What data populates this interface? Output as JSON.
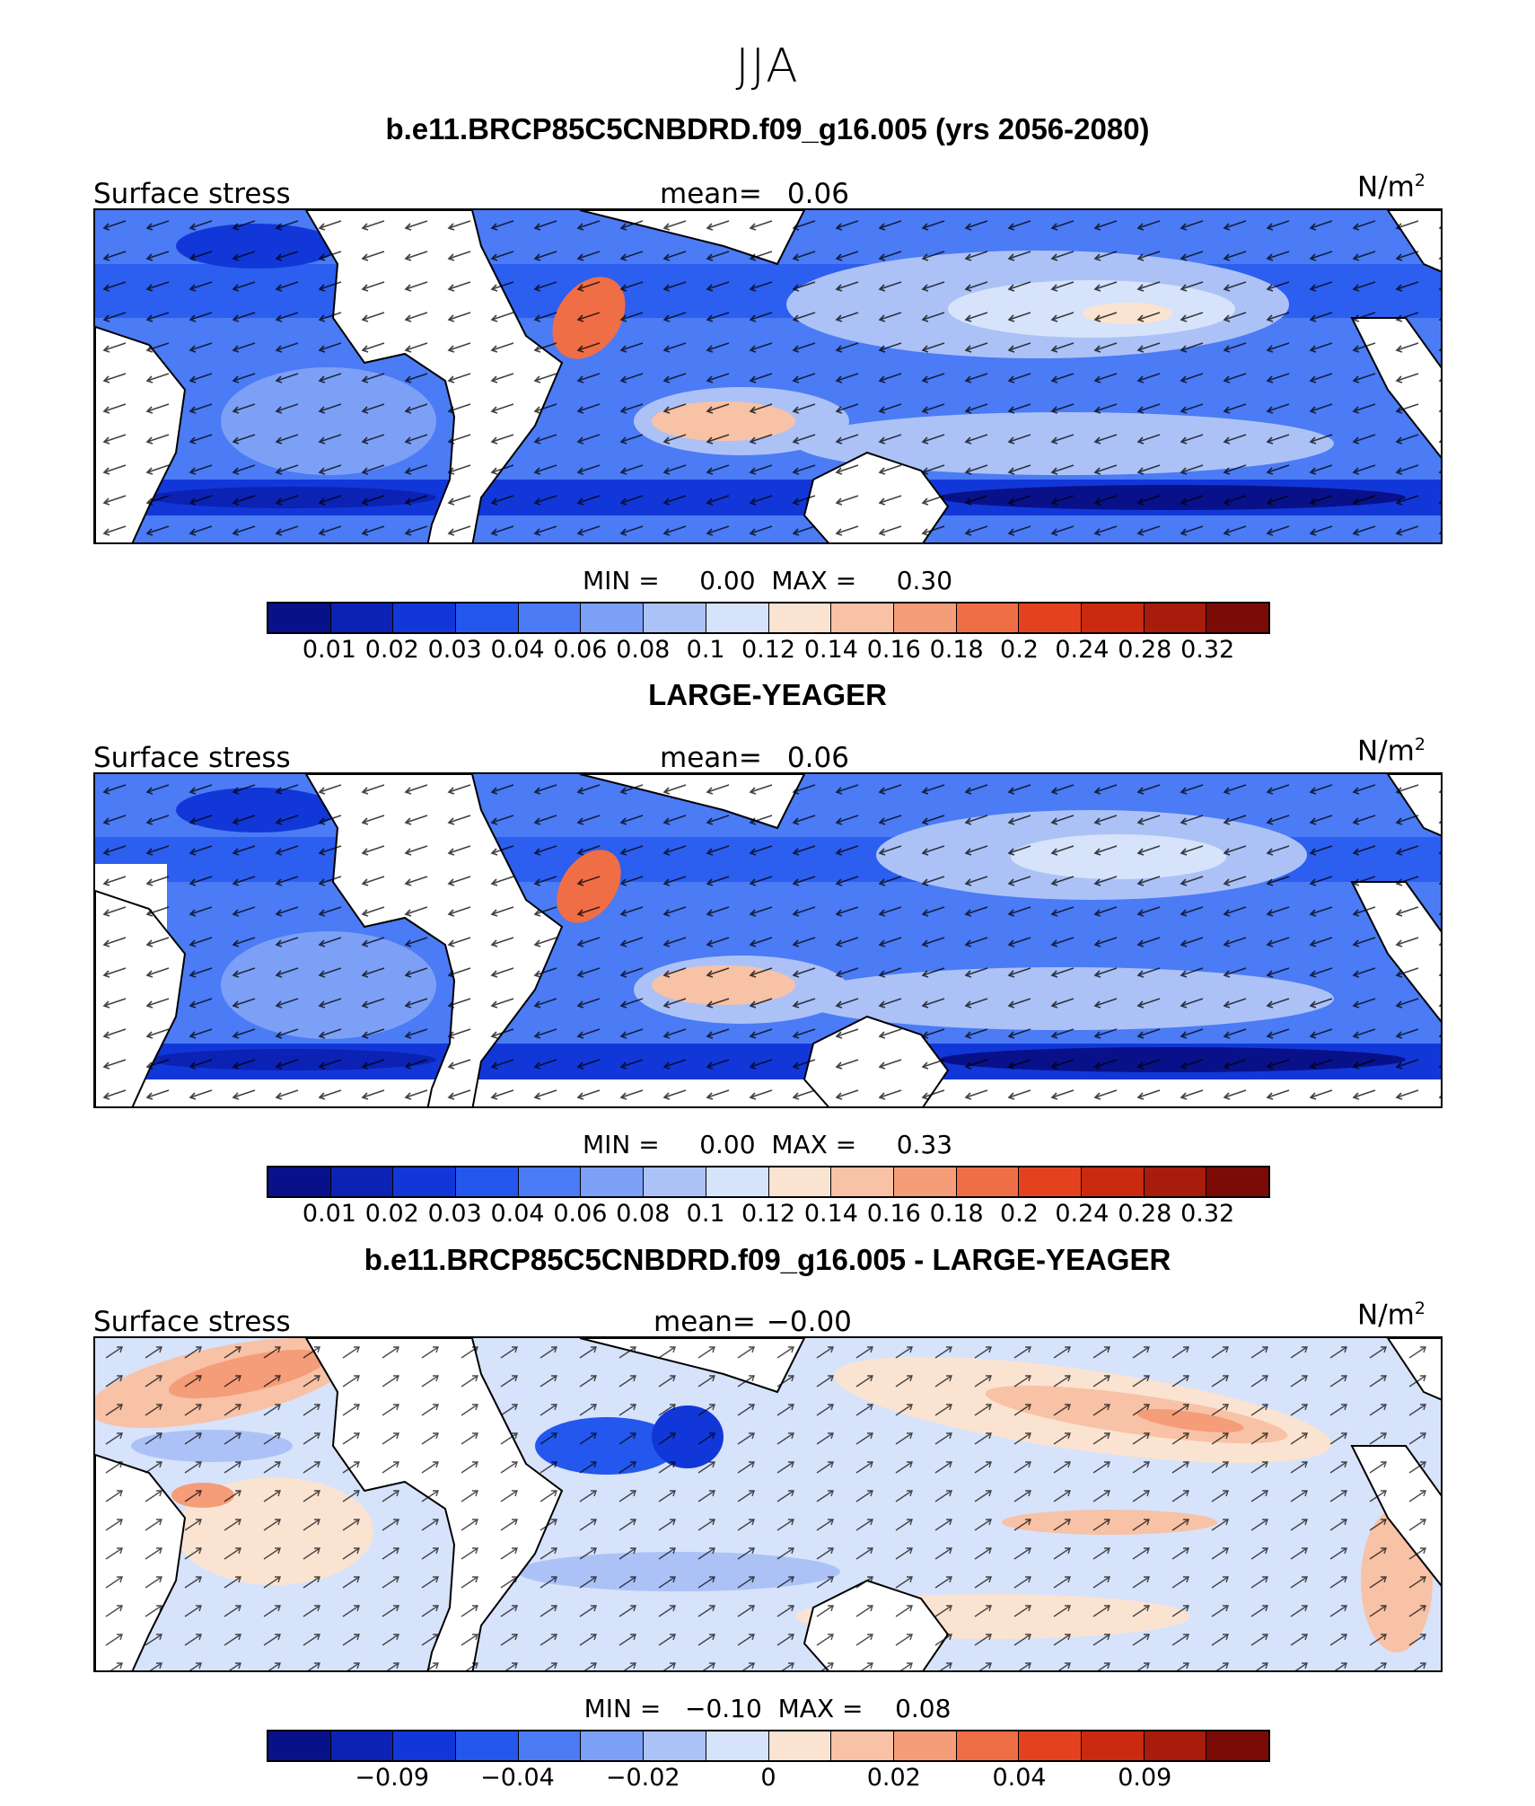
{
  "season": "JJA",
  "colors": [
    {
      "name": "c1",
      "hex": "#08118a"
    },
    {
      "name": "c2",
      "hex": "#0b22b5"
    },
    {
      "name": "c3",
      "hex": "#1237d8"
    },
    {
      "name": "c4",
      "hex": "#2457ee"
    },
    {
      "name": "c5",
      "hex": "#4b7bf5"
    },
    {
      "name": "c6",
      "hex": "#7da0f7"
    },
    {
      "name": "c7",
      "hex": "#acc2f7"
    },
    {
      "name": "c8",
      "hex": "#d6e3fa"
    },
    {
      "name": "c9",
      "hex": "#fbe3d2"
    },
    {
      "name": "c10",
      "hex": "#f8c2a6"
    },
    {
      "name": "c11",
      "hex": "#f59c78"
    },
    {
      "name": "c12",
      "hex": "#f06e46"
    },
    {
      "name": "c13",
      "hex": "#e4421f"
    },
    {
      "name": "c14",
      "hex": "#c92a10"
    },
    {
      "name": "c15",
      "hex": "#a81c0c"
    },
    {
      "name": "c16",
      "hex": "#7b0b06"
    }
  ],
  "panels": [
    {
      "title": "b.e11.BRCP85C5CNBDRD.f09_g16.005 (yrs 2056-2080)",
      "left_label": "Surface stress",
      "mean_label": "mean=",
      "mean_value": "0.06",
      "units_base": "N/m",
      "units_exp": "2",
      "min_label": "MIN =",
      "min_value": "0.00",
      "max_label": "MAX =",
      "max_value": "0.30",
      "ticks": [
        "0.01",
        "0.02",
        "0.03",
        "0.04",
        "0.06",
        "0.08",
        "0.1",
        "0.12",
        "0.14",
        "0.16",
        "0.18",
        "0.2",
        "0.24",
        "0.28",
        "0.32"
      ]
    },
    {
      "title": "LARGE-YEAGER",
      "left_label": "Surface stress",
      "mean_label": "mean=",
      "mean_value": "0.06",
      "units_base": "N/m",
      "units_exp": "2",
      "min_label": "MIN =",
      "min_value": "0.00",
      "max_label": "MAX =",
      "max_value": "0.33",
      "ticks": [
        "0.01",
        "0.02",
        "0.03",
        "0.04",
        "0.06",
        "0.08",
        "0.1",
        "0.12",
        "0.14",
        "0.16",
        "0.18",
        "0.2",
        "0.24",
        "0.28",
        "0.32"
      ]
    },
    {
      "title": "b.e11.BRCP85C5CNBDRD.f09_g16.005 - LARGE-YEAGER",
      "left_label": "Surface stress",
      "mean_label": "mean=",
      "mean_value": "−0.00",
      "units_base": "N/m",
      "units_exp": "2",
      "min_label": "MIN =",
      "min_value": "−0.10",
      "max_label": "MAX =",
      "max_value": "0.08",
      "ticks": [
        "",
        "−0.09",
        "",
        "−0.04",
        "",
        "−0.02",
        "",
        "0",
        "",
        "0.02",
        "",
        "0.04",
        "",
        "0.09",
        ""
      ]
    }
  ]
}
